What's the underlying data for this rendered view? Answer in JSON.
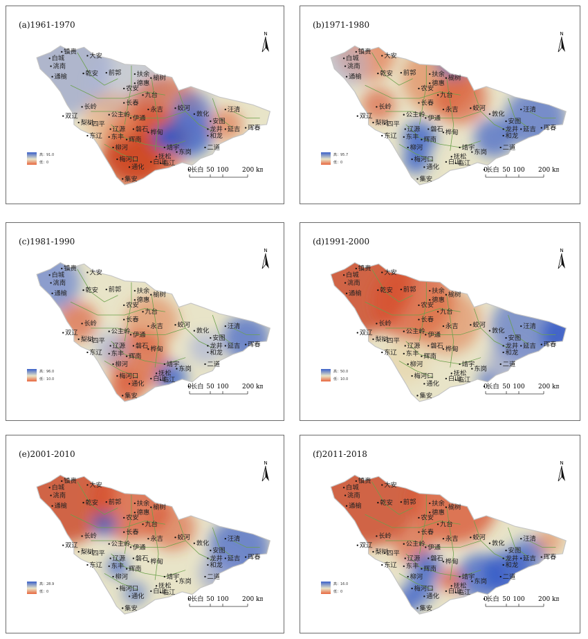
{
  "panels": [
    {
      "title": "(a)1961-1970",
      "legend_high": "高：91.0",
      "legend_low": "低：0"
    },
    {
      "title": "(b)1971-1980",
      "legend_high": "高：95.7",
      "legend_low": "低：0"
    },
    {
      "title": "(c)1981-1990",
      "legend_high": "高：96.0",
      "legend_low": "低：10.0"
    },
    {
      "title": "(d)1991-2000",
      "legend_high": "高：50.0",
      "legend_low": "低：10.0"
    },
    {
      "title": "(e)2001-2010",
      "legend_high": "高：28.9",
      "legend_low": "低：0"
    },
    {
      "title": "(f)2011-2018",
      "legend_high": "高：16.0",
      "legend_low": "低：0"
    }
  ],
  "scale": {
    "ticks": [
      "0",
      "50",
      "100",
      "200 km"
    ]
  },
  "north_label": "N",
  "towns": [
    "镇赉",
    "白城",
    "洮南",
    "大安",
    "乾安",
    "前郭",
    "通榆",
    "扶余",
    "榆树",
    "德惠",
    "长岭",
    "农安",
    "九台",
    "长春",
    "双辽",
    "公主岭",
    "伊通",
    "永吉",
    "蛟河",
    "梨树",
    "四平",
    "辽源",
    "磐石",
    "敦化",
    "汪清",
    "安图",
    "龙井",
    "延吉",
    "和龙",
    "珲春",
    "东丰",
    "东辽",
    "辉南",
    "桦甸",
    "靖宇",
    "抚松",
    "集安",
    "通化",
    "白山",
    "临江",
    "长白",
    "柳河",
    "梅河口",
    "二道",
    "东岗"
  ],
  "colors": {
    "high": "#3a60c9",
    "mid": "#e8e4c8",
    "low": "#e8663e",
    "outline": "#6aa04a",
    "grid": "#c4c4c4"
  }
}
